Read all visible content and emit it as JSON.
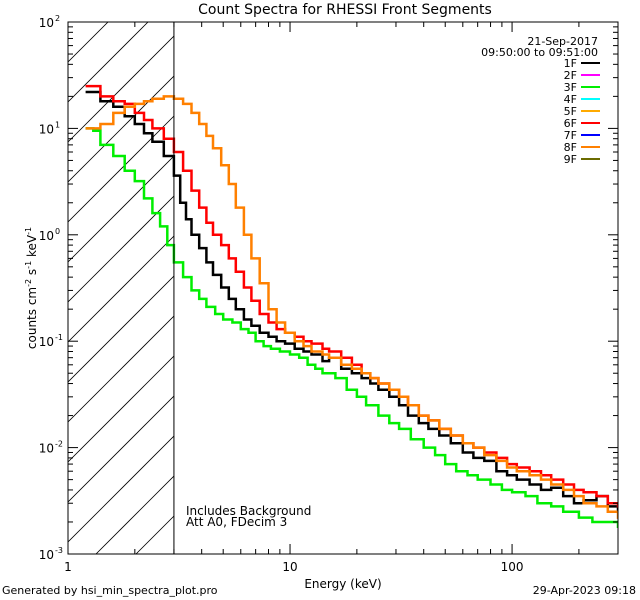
{
  "chart_data": {
    "type": "line",
    "title": "Count Spectra for RHESSI Front Segments",
    "xlabel": "Energy (keV)",
    "ylabel_main": "counts cm",
    "ylabel_sup1": "-2",
    "ylabel_mid1": " s",
    "ylabel_sup2": "-1",
    "ylabel_mid2": " keV",
    "ylabel_sup3": "-1",
    "xscale": "log",
    "yscale": "log",
    "xlim": [
      1,
      300
    ],
    "ylim": [
      0.001,
      100
    ],
    "x_ticks": [
      {
        "value": 1,
        "label": "1"
      },
      {
        "value": 10,
        "label": "10"
      },
      {
        "value": 100,
        "label": "100"
      }
    ],
    "y_ticks": [
      {
        "value": 100,
        "base": "10",
        "exp": "2"
      },
      {
        "value": 10,
        "base": "10",
        "exp": "1"
      },
      {
        "value": 1,
        "base": "10",
        "exp": "0"
      },
      {
        "value": 0.1,
        "base": "10",
        "exp": "-1"
      },
      {
        "value": 0.01,
        "base": "10",
        "exp": "-2"
      },
      {
        "value": 0.001,
        "base": "10",
        "exp": "-3"
      }
    ],
    "shaded_region_below_keV": 3,
    "date": "21-Sep-2017",
    "time_range": "09:50:00 to 09:51:00",
    "legend": [
      {
        "label": "1F",
        "color": "#000000"
      },
      {
        "label": "2F",
        "color": "#ff00ff"
      },
      {
        "label": "3F",
        "color": "#00ee00"
      },
      {
        "label": "4F",
        "color": "#00ffff"
      },
      {
        "label": "5F",
        "color": "#ffaa00"
      },
      {
        "label": "6F",
        "color": "#ff0000"
      },
      {
        "label": "7F",
        "color": "#0000ff"
      },
      {
        "label": "8F",
        "color": "#ff8000"
      },
      {
        "label": "9F",
        "color": "#6b6b00"
      }
    ],
    "annotations": [
      "Includes Background",
      "Att A0, FDecim 3"
    ],
    "series": [
      {
        "name": "1F",
        "color": "#000000",
        "width": 2.5,
        "points": [
          [
            1.2,
            22
          ],
          [
            1.4,
            18
          ],
          [
            1.6,
            16
          ],
          [
            1.8,
            13
          ],
          [
            2.0,
            11
          ],
          [
            2.2,
            9
          ],
          [
            2.4,
            7.5
          ],
          [
            2.7,
            5.5
          ],
          [
            3.0,
            3.6
          ],
          [
            3.2,
            2.0
          ],
          [
            3.4,
            1.4
          ],
          [
            3.6,
            1.0
          ],
          [
            3.9,
            0.75
          ],
          [
            4.2,
            0.55
          ],
          [
            4.5,
            0.42
          ],
          [
            4.9,
            0.32
          ],
          [
            5.3,
            0.25
          ],
          [
            5.7,
            0.2
          ],
          [
            6.2,
            0.16
          ],
          [
            6.7,
            0.14
          ],
          [
            7.3,
            0.12
          ],
          [
            8.0,
            0.11
          ],
          [
            8.7,
            0.1
          ],
          [
            9.5,
            0.095
          ],
          [
            10.5,
            0.085
          ],
          [
            11.5,
            0.08
          ],
          [
            12.5,
            0.075
          ],
          [
            14,
            0.065
          ],
          [
            15,
            0.07
          ],
          [
            17,
            0.055
          ],
          [
            19,
            0.05
          ],
          [
            21,
            0.045
          ],
          [
            23,
            0.04
          ],
          [
            25,
            0.035
          ],
          [
            28,
            0.03
          ],
          [
            31,
            0.025
          ],
          [
            34,
            0.02
          ],
          [
            38,
            0.017
          ],
          [
            42,
            0.015
          ],
          [
            47,
            0.013
          ],
          [
            53,
            0.011
          ],
          [
            60,
            0.009
          ],
          [
            67,
            0.008
          ],
          [
            75,
            0.0075
          ],
          [
            85,
            0.006
          ],
          [
            95,
            0.0055
          ],
          [
            105,
            0.005
          ],
          [
            120,
            0.0045
          ],
          [
            135,
            0.004
          ],
          [
            150,
            0.0042
          ],
          [
            170,
            0.0035
          ],
          [
            190,
            0.003
          ],
          [
            210,
            0.0032
          ],
          [
            240,
            0.0035
          ],
          [
            270,
            0.0028
          ],
          [
            300,
            0.0025
          ]
        ]
      },
      {
        "name": "3F",
        "color": "#00ee00",
        "width": 2.5,
        "points": [
          [
            1.2,
            10
          ],
          [
            1.3,
            9.5
          ],
          [
            1.4,
            7
          ],
          [
            1.6,
            5.5
          ],
          [
            1.8,
            4
          ],
          [
            2.0,
            3.2
          ],
          [
            2.2,
            2.2
          ],
          [
            2.4,
            1.6
          ],
          [
            2.6,
            1.2
          ],
          [
            2.8,
            0.8
          ],
          [
            3.0,
            0.55
          ],
          [
            3.3,
            0.4
          ],
          [
            3.6,
            0.3
          ],
          [
            3.9,
            0.25
          ],
          [
            4.2,
            0.21
          ],
          [
            4.6,
            0.18
          ],
          [
            5.0,
            0.16
          ],
          [
            5.5,
            0.15
          ],
          [
            6.0,
            0.13
          ],
          [
            6.5,
            0.12
          ],
          [
            7.0,
            0.1
          ],
          [
            7.6,
            0.09
          ],
          [
            8.2,
            0.085
          ],
          [
            9.0,
            0.08
          ],
          [
            10,
            0.075
          ],
          [
            11,
            0.07
          ],
          [
            12,
            0.06
          ],
          [
            13,
            0.055
          ],
          [
            14,
            0.05
          ],
          [
            16,
            0.045
          ],
          [
            18,
            0.035
          ],
          [
            20,
            0.03
          ],
          [
            22,
            0.025
          ],
          [
            25,
            0.02
          ],
          [
            28,
            0.017
          ],
          [
            31,
            0.015
          ],
          [
            35,
            0.012
          ],
          [
            40,
            0.01
          ],
          [
            45,
            0.0085
          ],
          [
            50,
            0.007
          ],
          [
            56,
            0.006
          ],
          [
            63,
            0.0055
          ],
          [
            70,
            0.005
          ],
          [
            80,
            0.0045
          ],
          [
            90,
            0.004
          ],
          [
            100,
            0.0038
          ],
          [
            115,
            0.0035
          ],
          [
            130,
            0.003
          ],
          [
            150,
            0.0028
          ],
          [
            170,
            0.0025
          ],
          [
            200,
            0.0022
          ],
          [
            230,
            0.002
          ],
          [
            260,
            0.002
          ],
          [
            300,
            0.0018
          ]
        ]
      },
      {
        "name": "6F",
        "color": "#ff0000",
        "width": 2.5,
        "points": [
          [
            1.2,
            25
          ],
          [
            1.4,
            20
          ],
          [
            1.6,
            18
          ],
          [
            1.8,
            17
          ],
          [
            2.0,
            14
          ],
          [
            2.2,
            12
          ],
          [
            2.4,
            10
          ],
          [
            2.7,
            8
          ],
          [
            3.0,
            6
          ],
          [
            3.3,
            4
          ],
          [
            3.6,
            2.6
          ],
          [
            3.9,
            1.8
          ],
          [
            4.2,
            1.3
          ],
          [
            4.5,
            1.0
          ],
          [
            4.9,
            0.8
          ],
          [
            5.3,
            0.6
          ],
          [
            5.7,
            0.45
          ],
          [
            6.2,
            0.32
          ],
          [
            6.7,
            0.24
          ],
          [
            7.3,
            0.18
          ],
          [
            8.0,
            0.15
          ],
          [
            8.7,
            0.13
          ],
          [
            9.5,
            0.12
          ],
          [
            10.5,
            0.11
          ],
          [
            11.5,
            0.1
          ],
          [
            12.5,
            0.095
          ],
          [
            14,
            0.085
          ],
          [
            15,
            0.08
          ],
          [
            17,
            0.07
          ],
          [
            19,
            0.06
          ],
          [
            21,
            0.05
          ],
          [
            23,
            0.045
          ],
          [
            25,
            0.04
          ],
          [
            28,
            0.035
          ],
          [
            31,
            0.03
          ],
          [
            34,
            0.025
          ],
          [
            38,
            0.02
          ],
          [
            42,
            0.018
          ],
          [
            47,
            0.015
          ],
          [
            53,
            0.013
          ],
          [
            60,
            0.011
          ],
          [
            67,
            0.01
          ],
          [
            75,
            0.009
          ],
          [
            85,
            0.008
          ],
          [
            95,
            0.007
          ],
          [
            105,
            0.0065
          ],
          [
            120,
            0.006
          ],
          [
            135,
            0.0055
          ],
          [
            150,
            0.005
          ],
          [
            170,
            0.0045
          ],
          [
            190,
            0.004
          ],
          [
            210,
            0.0038
          ],
          [
            240,
            0.0035
          ],
          [
            270,
            0.003
          ],
          [
            300,
            0.0028
          ]
        ]
      },
      {
        "name": "8F",
        "color": "#ff8000",
        "width": 2.5,
        "points": [
          [
            1.2,
            10
          ],
          [
            1.4,
            11
          ],
          [
            1.6,
            14
          ],
          [
            1.8,
            16
          ],
          [
            2.0,
            17
          ],
          [
            2.2,
            18
          ],
          [
            2.4,
            19
          ],
          [
            2.7,
            20
          ],
          [
            3.0,
            19
          ],
          [
            3.3,
            17
          ],
          [
            3.6,
            14
          ],
          [
            3.9,
            11
          ],
          [
            4.2,
            8.5
          ],
          [
            4.5,
            6.5
          ],
          [
            4.9,
            4.5
          ],
          [
            5.3,
            3
          ],
          [
            5.7,
            1.8
          ],
          [
            6.2,
            1.0
          ],
          [
            6.7,
            0.6
          ],
          [
            7.3,
            0.35
          ],
          [
            8.0,
            0.2
          ],
          [
            8.7,
            0.15
          ],
          [
            9.5,
            0.12
          ],
          [
            10.5,
            0.1
          ],
          [
            11.5,
            0.09
          ],
          [
            12.5,
            0.08
          ],
          [
            14,
            0.075
          ],
          [
            15,
            0.07
          ],
          [
            17,
            0.06
          ],
          [
            19,
            0.055
          ],
          [
            21,
            0.05
          ],
          [
            23,
            0.045
          ],
          [
            25,
            0.04
          ],
          [
            28,
            0.035
          ],
          [
            31,
            0.03
          ],
          [
            34,
            0.025
          ],
          [
            38,
            0.02
          ],
          [
            42,
            0.018
          ],
          [
            47,
            0.015
          ],
          [
            53,
            0.013
          ],
          [
            60,
            0.011
          ],
          [
            67,
            0.01
          ],
          [
            75,
            0.0085
          ],
          [
            85,
            0.0075
          ],
          [
            95,
            0.0065
          ],
          [
            105,
            0.006
          ],
          [
            120,
            0.0055
          ],
          [
            135,
            0.005
          ],
          [
            150,
            0.0045
          ],
          [
            170,
            0.004
          ],
          [
            190,
            0.0035
          ],
          [
            210,
            0.003
          ],
          [
            240,
            0.0028
          ],
          [
            270,
            0.0025
          ],
          [
            300,
            0.0022
          ]
        ]
      }
    ]
  },
  "footer": {
    "generated_by": "Generated by hsi_min_spectra_plot.pro",
    "timestamp": "29-Apr-2023 09:18"
  }
}
